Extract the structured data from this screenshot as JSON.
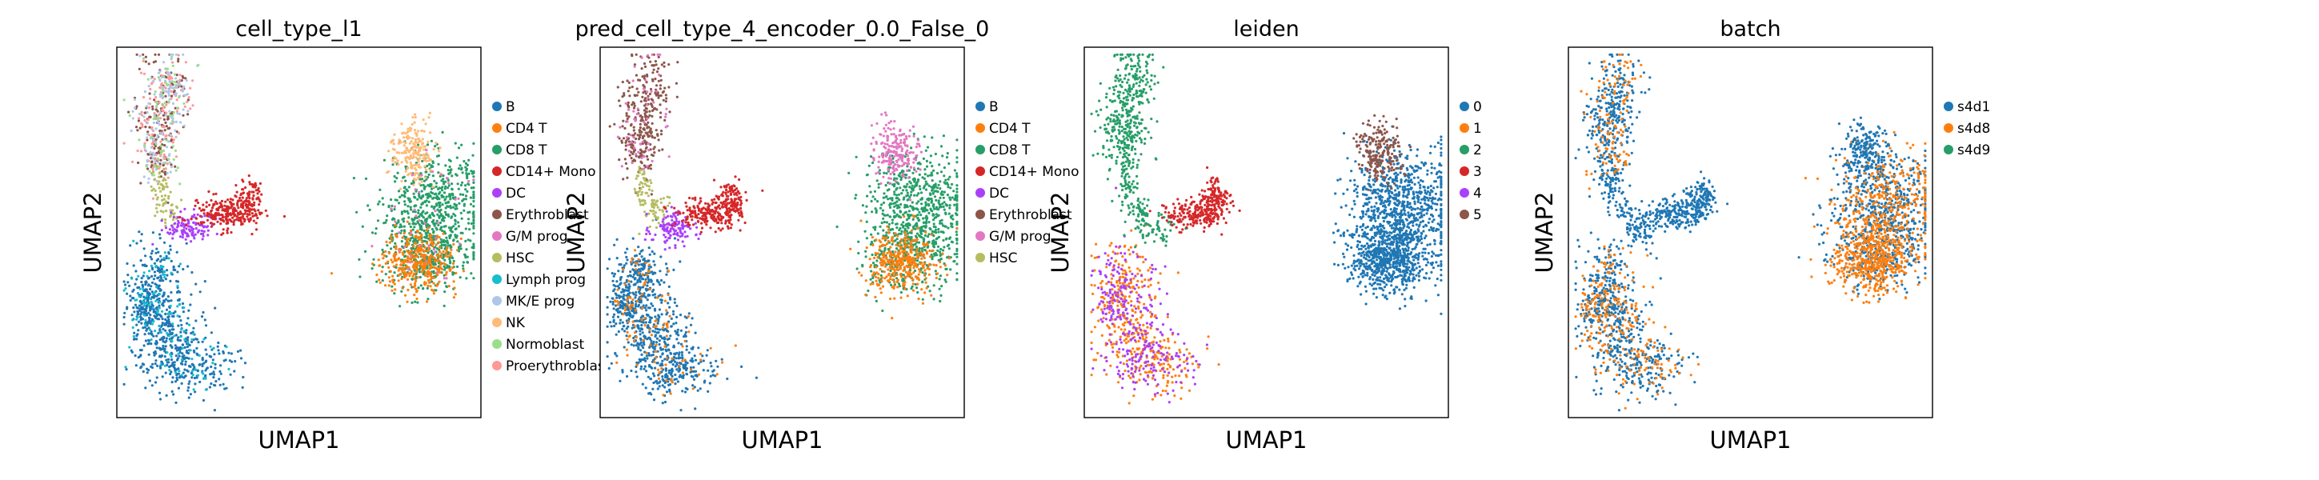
{
  "chart_data": [
    {
      "type": "scatter",
      "title": "cell_type_l1",
      "xlabel": "UMAP1",
      "ylabel": "UMAP2",
      "grid": false,
      "ticks": false,
      "legend_placement": "right",
      "legend": [
        {
          "name": "B",
          "color": "#1f77b4"
        },
        {
          "name": "CD4 T",
          "color": "#ff7f0e"
        },
        {
          "name": "CD8 T",
          "color": "#279e68"
        },
        {
          "name": "CD14+ Mono",
          "color": "#d62728"
        },
        {
          "name": "DC",
          "color": "#aa40fc"
        },
        {
          "name": "Erythroblast",
          "color": "#8c564b"
        },
        {
          "name": "G/M prog",
          "color": "#e377c2"
        },
        {
          "name": "HSC",
          "color": "#b5bd61"
        },
        {
          "name": "Lymph prog",
          "color": "#17becf"
        },
        {
          "name": "MK/E prog",
          "color": "#aec7e8"
        },
        {
          "name": "NK",
          "color": "#ffbb78"
        },
        {
          "name": "Normoblast",
          "color": "#98df8a"
        },
        {
          "name": "Proerythroblast",
          "color": "#ff9896"
        }
      ]
    },
    {
      "type": "scatter",
      "title": "pred_cell_type_4_encoder_0.0_False_0",
      "xlabel": "UMAP1",
      "ylabel": "UMAP2",
      "grid": false,
      "ticks": false,
      "legend_placement": "right",
      "legend": [
        {
          "name": "B",
          "color": "#1f77b4"
        },
        {
          "name": "CD4 T",
          "color": "#ff7f0e"
        },
        {
          "name": "CD8 T",
          "color": "#279e68"
        },
        {
          "name": "CD14+ Mono",
          "color": "#d62728"
        },
        {
          "name": "DC",
          "color": "#aa40fc"
        },
        {
          "name": "Erythroblast",
          "color": "#8c564b"
        },
        {
          "name": "G/M prog",
          "color": "#e377c2"
        },
        {
          "name": "HSC",
          "color": "#b5bd61"
        }
      ]
    },
    {
      "type": "scatter",
      "title": "leiden",
      "xlabel": "UMAP1",
      "ylabel": "UMAP2",
      "grid": false,
      "ticks": false,
      "legend_placement": "right",
      "legend": [
        {
          "name": "0",
          "color": "#1f77b4"
        },
        {
          "name": "1",
          "color": "#ff7f0e"
        },
        {
          "name": "2",
          "color": "#279e68"
        },
        {
          "name": "3",
          "color": "#d62728"
        },
        {
          "name": "4",
          "color": "#aa40fc"
        },
        {
          "name": "5",
          "color": "#8c564b"
        }
      ]
    },
    {
      "type": "scatter",
      "title": "batch",
      "xlabel": "UMAP1",
      "ylabel": "UMAP2",
      "grid": false,
      "ticks": false,
      "legend_placement": "right",
      "legend": [
        {
          "name": "s4d1",
          "color": "#1f77b4"
        },
        {
          "name": "s4d8",
          "color": "#ff7f0e"
        },
        {
          "name": "s4d9",
          "color": "#279e68"
        }
      ]
    }
  ]
}
